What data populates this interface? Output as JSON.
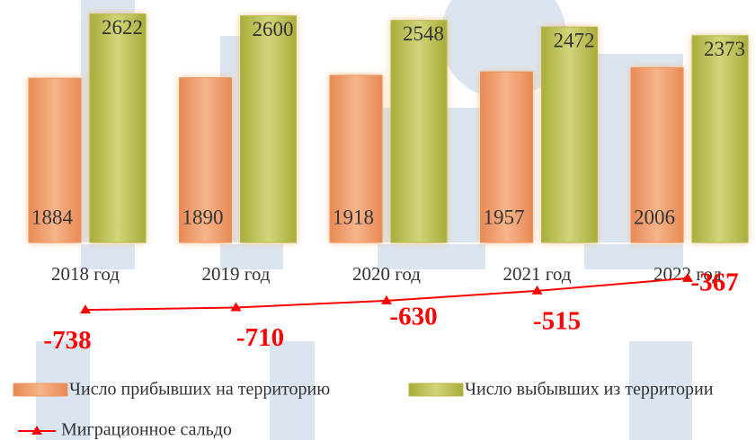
{
  "chart_data": {
    "type": "bar",
    "categories": [
      "2018 год",
      "2019 год",
      "2020 год",
      "2021 год",
      "2022 год"
    ],
    "series": [
      {
        "name": "Число прибывших на территорию",
        "color": "#eb9560",
        "values": [
          1884,
          1890,
          1918,
          1957,
          2006
        ]
      },
      {
        "name": "Число выбывших из территории",
        "color": "#b4b848",
        "values": [
          2622,
          2600,
          2548,
          2472,
          2373
        ]
      },
      {
        "name": "Миграционное сальдо",
        "type": "line",
        "axis": "y2",
        "color": "#ff0000",
        "values": [
          -738,
          -710,
          -630,
          -515,
          -367
        ]
      }
    ],
    "ylim": [
      0,
      2700
    ],
    "y2lim": [
      -1000,
      0
    ]
  }
}
